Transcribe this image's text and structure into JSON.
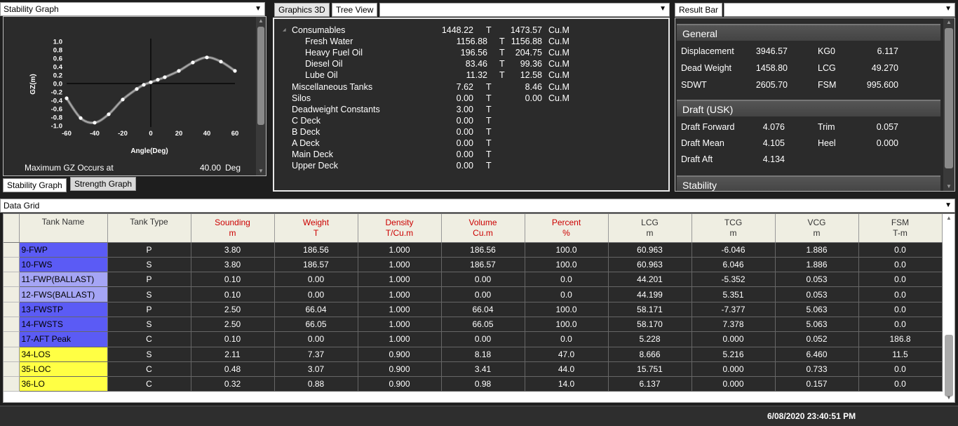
{
  "stability_panel": {
    "title": "Stability Graph",
    "max_gz_label": "Maximum GZ Occurs at",
    "max_gz_value": "40.00",
    "max_gz_unit": "Deg",
    "tabs": [
      "Stability Graph",
      "Strength Graph"
    ]
  },
  "chart_data": {
    "type": "line",
    "title": "",
    "xlabel": "Angle(Deg)",
    "ylabel": "GZ(m)",
    "xlim": [
      -60,
      60
    ],
    "ylim": [
      -1.0,
      1.0
    ],
    "xticks": [
      "-60",
      "-40",
      "-20",
      "0",
      "20",
      "40",
      "60"
    ],
    "yticks": [
      "1.0",
      "0.8",
      "0.6",
      "0.4",
      "0.2",
      "0.0",
      "-0.2",
      "-0.4",
      "-0.6",
      "-0.8",
      "-1.0"
    ],
    "x": [
      -60,
      -50,
      -40,
      -30,
      -20,
      -10,
      -5,
      0,
      5,
      10,
      20,
      30,
      40,
      50,
      60
    ],
    "y": [
      -0.35,
      -0.82,
      -0.93,
      -0.73,
      -0.38,
      -0.13,
      -0.03,
      0.03,
      0.09,
      0.15,
      0.3,
      0.5,
      0.62,
      0.52,
      0.3
    ]
  },
  "center_panel": {
    "tabs": [
      "Graphics 3D",
      "Tree View"
    ],
    "tree": [
      {
        "name": "Consumables",
        "level": 0,
        "weight": "1448.22",
        "wunit": "T",
        "volume": "1473.57",
        "vunit": "Cu.M"
      },
      {
        "name": "Fresh Water",
        "level": 1,
        "weight": "1156.88",
        "wunit": "T",
        "volume": "1156.88",
        "vunit": "Cu.M"
      },
      {
        "name": "Heavy Fuel Oil",
        "level": 1,
        "weight": "196.56",
        "wunit": "T",
        "volume": "204.75",
        "vunit": "Cu.M"
      },
      {
        "name": "Diesel Oil",
        "level": 1,
        "weight": "83.46",
        "wunit": "T",
        "volume": "99.36",
        "vunit": "Cu.M"
      },
      {
        "name": "Lube Oil",
        "level": 1,
        "weight": "11.32",
        "wunit": "T",
        "volume": "12.58",
        "vunit": "Cu.M"
      },
      {
        "name": "Miscellaneous Tanks",
        "level": 0,
        "weight": "7.62",
        "wunit": "T",
        "volume": "8.46",
        "vunit": "Cu.M"
      },
      {
        "name": "Silos",
        "level": 0,
        "weight": "0.00",
        "wunit": "T",
        "volume": "0.00",
        "vunit": "Cu.M"
      },
      {
        "name": "Deadweight Constants",
        "level": 0,
        "weight": "3.00",
        "wunit": "T",
        "volume": "",
        "vunit": ""
      },
      {
        "name": "C Deck",
        "level": 0,
        "weight": "0.00",
        "wunit": "T",
        "volume": "",
        "vunit": ""
      },
      {
        "name": "B Deck",
        "level": 0,
        "weight": "0.00",
        "wunit": "T",
        "volume": "",
        "vunit": ""
      },
      {
        "name": "A Deck",
        "level": 0,
        "weight": "0.00",
        "wunit": "T",
        "volume": "",
        "vunit": ""
      },
      {
        "name": "Main Deck",
        "level": 0,
        "weight": "0.00",
        "wunit": "T",
        "volume": "",
        "vunit": ""
      },
      {
        "name": "Upper Deck",
        "level": 0,
        "weight": "0.00",
        "wunit": "T",
        "volume": "",
        "vunit": ""
      }
    ]
  },
  "result_bar": {
    "title": "Result Bar",
    "sections": [
      {
        "name": "General",
        "rows": [
          {
            "l1": "Displacement",
            "v1": "3946.57",
            "l2": "KG0",
            "v2": "6.117"
          },
          {
            "l1": "Dead Weight",
            "v1": "1458.80",
            "l2": "LCG",
            "v2": "49.270"
          },
          {
            "l1": "SDWT",
            "v1": "2605.70",
            "l2": "FSM",
            "v2": "995.600"
          }
        ]
      },
      {
        "name": "Draft (USK)",
        "rows": [
          {
            "l1": "Draft Forward",
            "v1": "4.076",
            "l2": "Trim",
            "v2": "0.057"
          },
          {
            "l1": "Draft Mean",
            "v1": "4.105",
            "l2": "Heel",
            "v2": "0.000"
          },
          {
            "l1": "Draft Aft",
            "v1": "4.134",
            "l2": "",
            "v2": ""
          }
        ]
      },
      {
        "name": "Stability",
        "rows": []
      }
    ]
  },
  "data_grid": {
    "title": "Data Grid",
    "columns": [
      {
        "name": "Tank Name",
        "unit": "",
        "red": false
      },
      {
        "name": "Tank Type",
        "unit": "",
        "red": false
      },
      {
        "name": "Sounding",
        "unit": "m",
        "red": true
      },
      {
        "name": "Weight",
        "unit": "T",
        "red": true
      },
      {
        "name": "Density",
        "unit": "T/Cu.m",
        "red": true
      },
      {
        "name": "Volume",
        "unit": "Cu.m",
        "red": true
      },
      {
        "name": "Percent",
        "unit": "%",
        "red": true
      },
      {
        "name": "LCG",
        "unit": "m",
        "red": false
      },
      {
        "name": "TCG",
        "unit": "m",
        "red": false
      },
      {
        "name": "VCG",
        "unit": "m",
        "red": false
      },
      {
        "name": "FSM",
        "unit": "T-m",
        "red": false
      }
    ],
    "rows": [
      {
        "color": "#5b5bf5",
        "cells": [
          "9-FWP",
          "P",
          "3.80",
          "186.56",
          "1.000",
          "186.56",
          "100.0",
          "60.963",
          "-6.046",
          "1.886",
          "0.0"
        ]
      },
      {
        "color": "#5b5bf5",
        "cells": [
          "10-FWS",
          "S",
          "3.80",
          "186.57",
          "1.000",
          "186.57",
          "100.0",
          "60.963",
          "6.046",
          "1.886",
          "0.0"
        ]
      },
      {
        "color": "#a5a5f5",
        "cells": [
          "11-FWP(BALLAST)",
          "P",
          "0.10",
          "0.00",
          "1.000",
          "0.00",
          "0.0",
          "44.201",
          "-5.352",
          "0.053",
          "0.0"
        ]
      },
      {
        "color": "#a5a5f5",
        "cells": [
          "12-FWS(BALLAST)",
          "S",
          "0.10",
          "0.00",
          "1.000",
          "0.00",
          "0.0",
          "44.199",
          "5.351",
          "0.053",
          "0.0"
        ]
      },
      {
        "color": "#5b5bf5",
        "cells": [
          "13-FWSTP",
          "P",
          "2.50",
          "66.04",
          "1.000",
          "66.04",
          "100.0",
          "58.171",
          "-7.377",
          "5.063",
          "0.0"
        ]
      },
      {
        "color": "#5b5bf5",
        "cells": [
          "14-FWSTS",
          "S",
          "2.50",
          "66.05",
          "1.000",
          "66.05",
          "100.0",
          "58.170",
          "7.378",
          "5.063",
          "0.0"
        ]
      },
      {
        "color": "#5b5bf5",
        "cells": [
          "17-AFT Peak",
          "C",
          "0.10",
          "0.00",
          "1.000",
          "0.00",
          "0.0",
          "5.228",
          "0.000",
          "0.052",
          "186.8"
        ]
      },
      {
        "color": "#ffff44",
        "cells": [
          "34-LOS",
          "S",
          "2.11",
          "7.37",
          "0.900",
          "8.18",
          "47.0",
          "8.666",
          "5.216",
          "6.460",
          "11.5"
        ]
      },
      {
        "color": "#ffff44",
        "cells": [
          "35-LOC",
          "C",
          "0.48",
          "3.07",
          "0.900",
          "3.41",
          "44.0",
          "15.751",
          "0.000",
          "0.733",
          "0.0"
        ]
      },
      {
        "color": "#ffff44",
        "cells": [
          "36-LO",
          "C",
          "0.32",
          "0.88",
          "0.900",
          "0.98",
          "14.0",
          "6.137",
          "0.000",
          "0.157",
          "0.0"
        ]
      }
    ]
  },
  "status": {
    "datetime": "6/08/2020 23:40:51 PM"
  }
}
